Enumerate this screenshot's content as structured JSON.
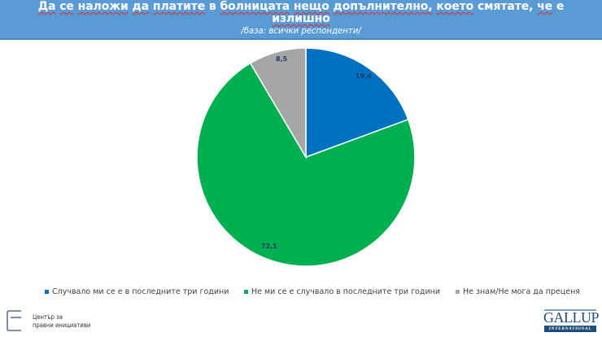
{
  "header": {
    "title_words": [
      "Да",
      "се",
      "наложи",
      "да",
      "платите",
      "в",
      "болницата",
      "нещо",
      "допълнително,",
      "което",
      "смятате,",
      "че",
      "е",
      "излишно"
    ],
    "title": "Да се наложи да платите в болницата нещо допълнително, което смятате, че е излишно",
    "title_line1": "Да се наложи да платите в болницата нещо допълнително, което смятате, че е",
    "title_line2": "излишно",
    "subtitle": "/база: всички респонденти/"
  },
  "chart_data": {
    "type": "pie",
    "title": "Да се наложи да платите в болницата нещо допълнително, което смятате, че е излишно",
    "subtitle": "/база: всички респонденти/",
    "categories": [
      "Случвало ми се е в последните три години",
      "Не ми се е случвало в последните три години",
      "Не знам/Не мога да преценя"
    ],
    "values": [
      19.4,
      72.1,
      8.5
    ],
    "value_labels": [
      "19,4",
      "72,1",
      "8,5"
    ],
    "colors": [
      "#0070c0",
      "#00b050",
      "#a6a6a6"
    ],
    "start_angle_deg": 0,
    "direction": "clockwise",
    "legend_position": "bottom"
  },
  "legend": {
    "items": [
      {
        "label": "Случвало ми се е в последните три години",
        "color": "#0070c0"
      },
      {
        "label": "Не ми се е случвало в последните три години",
        "color": "#00b050"
      },
      {
        "label": "Не знам/Не мога да преценя",
        "color": "#a6a6a6"
      }
    ]
  },
  "logos": {
    "left_line1": "Център за",
    "left_line2": "правни инициативи",
    "right_word": "GALLUP",
    "right_sub": "INTERNATIONAL"
  }
}
